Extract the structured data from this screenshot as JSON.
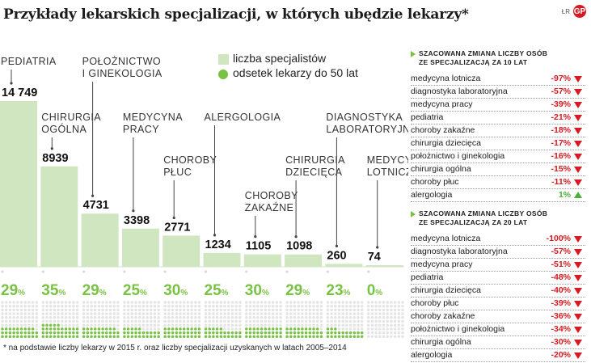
{
  "header": {
    "title": "Przykłady lekarskich specjalizacji, w których ubędzie lekarzy*",
    "credit": "ŁR",
    "brand": "GP"
  },
  "legend": {
    "bars_label": "liczba specjalistów",
    "dots_label": "odsetek lekarzy do 50 lat",
    "bar_color": "#cfe6c0",
    "dot_color": "#78c244"
  },
  "chart_data": {
    "type": "bar",
    "categories": [
      "PEDIATRIA",
      "CHIRURGIA OGÓLNA",
      "POŁOŻNICTWO I GINEKOLOGIA",
      "MEDYCYNA PRACY",
      "CHOROBY PŁUC",
      "ALERGOLOGIA",
      "CHOROBY ZAKAŹNE",
      "CHIRURGIA DZIECIĘCA",
      "DIAGNOSTYKA LABORATORYJNA",
      "MEDYCYNA LOTNICZA"
    ],
    "category_lines": [
      [
        "PEDIATRIA"
      ],
      [
        "CHIRURGIA",
        "OGÓLNA"
      ],
      [
        "POŁOŻNICTWO",
        "I GINEKOLOGIA"
      ],
      [
        "MEDYCYNA",
        "PRACY"
      ],
      [
        "CHOROBY",
        "PŁUC"
      ],
      [
        "ALERGOLOGIA"
      ],
      [
        "CHOROBY",
        "ZAKAŹNE"
      ],
      [
        "CHIRURGIA",
        "DZIECIĘCA"
      ],
      [
        "DIAGNOSTYKA",
        "LABORATORYJNA"
      ],
      [
        "MEDYCYNA",
        "LOTNICZA"
      ]
    ],
    "series": [
      {
        "name": "liczba specjalistów",
        "values": [
          14749,
          8939,
          4731,
          3398,
          2771,
          1234,
          1105,
          1098,
          260,
          74
        ],
        "labels": [
          "14 749",
          "8939",
          "4731",
          "3398",
          "2771",
          "1234",
          "1105",
          "1098",
          "260",
          "74"
        ]
      },
      {
        "name": "odsetek lekarzy do 50 lat",
        "values": [
          29,
          35,
          29,
          25,
          30,
          25,
          30,
          29,
          23,
          0
        ]
      }
    ],
    "percent_suffix": "%",
    "ylim": [
      0,
      14749
    ]
  },
  "footnote": "* na podstawie liczby lekarzy w 2015 r. oraz liczby specjalizacji uzyskanych w latach 2005–2014",
  "panel10": {
    "title_line1": "SZACOWANA ZMIANA LICZBY OSÓB",
    "title_line2": "ZE SPECJALIZACJĄ ZA 10 LAT",
    "rows": [
      {
        "label": "medycyna lotnicza",
        "value": "-97%",
        "dir": "down"
      },
      {
        "label": "diagnostyka laboratoryjna",
        "value": "-57%",
        "dir": "down"
      },
      {
        "label": "medycyna pracy",
        "value": "-39%",
        "dir": "down"
      },
      {
        "label": "pediatria",
        "value": "-21%",
        "dir": "down"
      },
      {
        "label": "choroby zakaźne",
        "value": "-18%",
        "dir": "down"
      },
      {
        "label": "chirurgia dziecięca",
        "value": "-17%",
        "dir": "down"
      },
      {
        "label": "położnictwo i ginekologia",
        "value": "-16%",
        "dir": "down"
      },
      {
        "label": "chirurgia ogólna",
        "value": "-15%",
        "dir": "down"
      },
      {
        "label": "choroby płuc",
        "value": "-11%",
        "dir": "down"
      },
      {
        "label": "alergologia",
        "value": "1%",
        "dir": "up"
      }
    ]
  },
  "panel20": {
    "title_line1": "SZACOWANA ZMIANA LICZBY OSÓB",
    "title_line2": "ZE SPECJALIZACJĄ ZA 20 LAT",
    "rows": [
      {
        "label": "medycyna lotnicza",
        "value": "-100%",
        "dir": "down"
      },
      {
        "label": "diagnostyka laboratoryjna",
        "value": "-57%",
        "dir": "down"
      },
      {
        "label": "medycyna pracy",
        "value": "-51%",
        "dir": "down"
      },
      {
        "label": "pediatria",
        "value": "-48%",
        "dir": "down"
      },
      {
        "label": "chirurgia dziecięca",
        "value": "-40%",
        "dir": "down"
      },
      {
        "label": "choroby płuc",
        "value": "-39%",
        "dir": "down"
      },
      {
        "label": "choroby zakaźne",
        "value": "-36%",
        "dir": "down"
      },
      {
        "label": "położnictwo i ginekologia",
        "value": "-34%",
        "dir": "down"
      },
      {
        "label": "chirurgia ogólna",
        "value": "-30%",
        "dir": "down"
      },
      {
        "label": "alergologia",
        "value": "-20%",
        "dir": "down"
      }
    ]
  }
}
